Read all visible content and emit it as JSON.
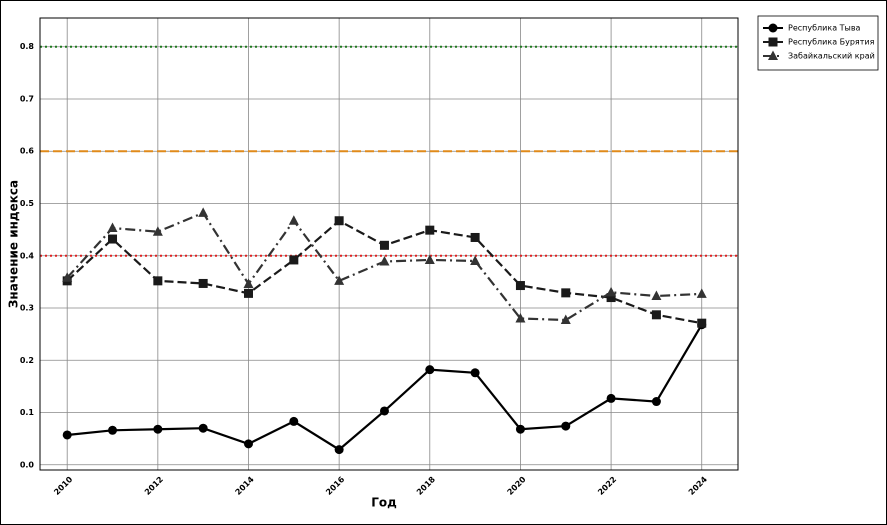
{
  "chart_data": {
    "type": "line",
    "xlabel": "Год",
    "ylabel": "Значение индекса",
    "x": [
      2010,
      2011,
      2012,
      2013,
      2014,
      2015,
      2016,
      2017,
      2018,
      2019,
      2020,
      2021,
      2022,
      2023,
      2024
    ],
    "xlim": [
      2009.4,
      2024.8
    ],
    "xticks": [
      2010,
      2012,
      2014,
      2016,
      2018,
      2020,
      2022,
      2024
    ],
    "ylim": [
      -0.01,
      0.855
    ],
    "yticks": [
      {
        "value": 0,
        "label": "0.0"
      },
      0.1,
      0.2,
      0.3,
      0.4,
      0.5,
      0.6,
      0.7,
      0.8
    ],
    "grid": true,
    "legend": "outside-top-right",
    "reference_lines": [
      {
        "value": 0.8,
        "color": "#1f7a1f",
        "style": "dotted"
      },
      {
        "value": 0.6,
        "color": "#e08a1a",
        "style": "dashed"
      },
      {
        "value": 0.4,
        "color": "#e02020",
        "style": "dotted"
      }
    ],
    "series": [
      {
        "name": "Республика Тыва",
        "color": "#000000",
        "linestyle": "solid",
        "marker": "circle",
        "values": [
          0.057,
          0.066,
          0.068,
          0.07,
          0.04,
          0.083,
          0.029,
          0.103,
          0.182,
          0.176,
          0.068,
          0.074,
          0.127,
          0.121,
          0.268
        ]
      },
      {
        "name": "Республика Бурятия",
        "color": "#1a1a1a",
        "linestyle": "dashed",
        "marker": "square",
        "values": [
          0.352,
          0.432,
          0.352,
          0.347,
          0.328,
          0.392,
          0.467,
          0.42,
          0.449,
          0.435,
          0.343,
          0.329,
          0.32,
          0.287,
          0.271
        ]
      },
      {
        "name": "Забайкальский край",
        "color": "#333333",
        "linestyle": "dashdot",
        "marker": "triangle",
        "values": [
          0.358,
          0.453,
          0.446,
          0.482,
          0.346,
          0.467,
          0.352,
          0.389,
          0.392,
          0.39,
          0.28,
          0.277,
          0.33,
          0.323,
          0.327
        ]
      }
    ]
  }
}
